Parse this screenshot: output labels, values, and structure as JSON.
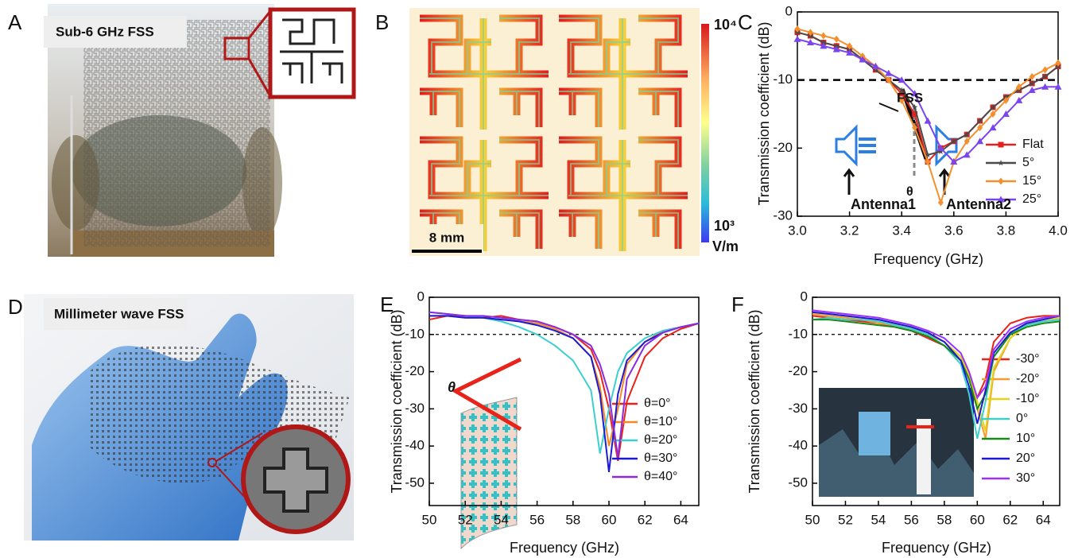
{
  "panels": {
    "a": {
      "letter": "A",
      "label": "Sub-6 GHz FSS"
    },
    "b": {
      "letter": "B",
      "scale_bar": "8 mm",
      "colorbar_max": "10⁴",
      "colorbar_min": "10³",
      "colorbar_unit": "V/m"
    },
    "d": {
      "letter": "D",
      "label": "Millimeter wave FSS"
    }
  },
  "chart_data": [
    {
      "type": "line",
      "label": "C",
      "xlabel": "Frequency (GHz)",
      "ylabel": "Transmission coefficient (dB)",
      "xlim": [
        3.0,
        4.0
      ],
      "ylim": [
        -30,
        0
      ],
      "xticks": [
        {
          "value": 3,
          "label": "3.0"
        },
        {
          "value": 3.2,
          "label": "3.2"
        },
        {
          "value": 3.4,
          "label": "3.4"
        },
        {
          "value": 3.6,
          "label": "3.6"
        },
        {
          "value": 3.8,
          "label": "3.8"
        },
        {
          "value": 4,
          "label": "4.0"
        }
      ],
      "yticks": [
        0,
        -10,
        -20,
        -30
      ],
      "grid": false,
      "hline": -10,
      "legend": "right",
      "annotations": [
        "FSS",
        "θ",
        "Antenna1",
        "Antenna2"
      ],
      "x": [
        3.0,
        3.05,
        3.1,
        3.15,
        3.2,
        3.25,
        3.3,
        3.35,
        3.4,
        3.45,
        3.5,
        3.55,
        3.6,
        3.65,
        3.7,
        3.75,
        3.8,
        3.85,
        3.9,
        3.95,
        4.0
      ],
      "series": [
        {
          "name": "Flat",
          "color": "#e4211c",
          "marker": "square",
          "values": [
            -3,
            -3.5,
            -4.5,
            -5,
            -5.5,
            -7,
            -8.5,
            -10,
            -12,
            -15,
            -22,
            -20,
            -19,
            -18,
            -16,
            -14,
            -12.5,
            -11.5,
            -10.5,
            -9.5,
            -8
          ]
        },
        {
          "name": "5°",
          "color": "#4a4a4a",
          "marker": "star",
          "values": [
            -3,
            -3.5,
            -4.5,
            -5,
            -5.5,
            -7,
            -8.5,
            -10,
            -11.5,
            -14,
            -21,
            -20.5,
            -19,
            -18,
            -16,
            -14,
            -12.5,
            -11.5,
            -10.5,
            -9.5,
            -8
          ]
        },
        {
          "name": "15°",
          "color": "#f2902e",
          "marker": "diamond",
          "values": [
            -2.5,
            -3,
            -3.5,
            -4,
            -5,
            -6.5,
            -8,
            -10,
            -13,
            -17,
            -22,
            -28,
            -22,
            -19,
            -17,
            -15,
            -13,
            -11,
            -9.5,
            -8.5,
            -7.5
          ]
        },
        {
          "name": "25°",
          "color": "#7a45ef",
          "marker": "triangle",
          "values": [
            -4,
            -4.5,
            -5,
            -5.5,
            -6,
            -7,
            -8,
            -9,
            -10,
            -12,
            -16,
            -20,
            -22,
            -21,
            -19,
            -17,
            -15,
            -13,
            -11.5,
            -11,
            -11
          ]
        }
      ]
    },
    {
      "type": "line",
      "label": "E",
      "xlabel": "Frequency (GHz)",
      "ylabel": "Transmission coefficient (dB)",
      "xlim": [
        50,
        65
      ],
      "ylim": [
        -56,
        0
      ],
      "xticks": [
        50,
        52,
        54,
        56,
        58,
        60,
        62,
        64
      ],
      "yticks": [
        0,
        -10,
        -20,
        -30,
        -40,
        -50
      ],
      "grid": false,
      "hline": -10,
      "legend": "lower right",
      "annotations": [
        "θ"
      ],
      "x": [
        50,
        51,
        52,
        53,
        54,
        55,
        56,
        57,
        58,
        59,
        59.5,
        60,
        60.5,
        61,
        62,
        63,
        64,
        65
      ],
      "series": [
        {
          "name": "θ=0°",
          "color": "#e8231a",
          "values": [
            -6,
            -5,
            -5,
            -5.5,
            -5,
            -6,
            -6.5,
            -8,
            -10,
            -14,
            -20,
            -30,
            -44,
            -28,
            -16,
            -11,
            -8.5,
            -7
          ]
        },
        {
          "name": "θ=10°",
          "color": "#f5891f",
          "values": [
            -5,
            -5,
            -5.5,
            -5.5,
            -6,
            -6.5,
            -7,
            -8.5,
            -11,
            -16,
            -24,
            -40,
            -30,
            -18,
            -12,
            -9,
            -8,
            -7
          ]
        },
        {
          "name": "θ=20°",
          "color": "#3ccfd0",
          "values": [
            -4,
            -4.5,
            -5,
            -5.5,
            -6.5,
            -8,
            -10,
            -13,
            -17,
            -25,
            -42,
            -30,
            -20,
            -15,
            -11,
            -9,
            -8,
            -7
          ]
        },
        {
          "name": "θ=30°",
          "color": "#1a1ad6",
          "values": [
            -5,
            -5,
            -5.5,
            -5.5,
            -6,
            -6.5,
            -7.5,
            -9,
            -11,
            -16,
            -26,
            -47,
            -26,
            -17,
            -12,
            -9.5,
            -8,
            -7
          ]
        },
        {
          "name": "θ=40°",
          "color": "#8a2be2",
          "values": [
            -4,
            -4.5,
            -5,
            -5,
            -5.5,
            -6,
            -6.5,
            -8,
            -10,
            -13,
            -18,
            -26,
            -43,
            -22,
            -13,
            -9.5,
            -8,
            -7
          ]
        }
      ]
    },
    {
      "type": "line",
      "label": "F",
      "xlabel": "Frequency (GHz)",
      "ylabel": "Transmission coefficient (dB)",
      "xlim": [
        50,
        65
      ],
      "ylim": [
        -56,
        0
      ],
      "xticks": [
        50,
        52,
        54,
        56,
        58,
        60,
        62,
        64
      ],
      "yticks": [
        0,
        -10,
        -20,
        -30,
        -40,
        -50
      ],
      "grid": false,
      "hline": -10,
      "legend": "right",
      "x": [
        50,
        51,
        52,
        53,
        54,
        55,
        56,
        57,
        58,
        59,
        59.5,
        60,
        60.5,
        61,
        62,
        63,
        64,
        65
      ],
      "series": [
        {
          "name": "-30°",
          "color": "#e8231a",
          "values": [
            -5,
            -5.5,
            -6,
            -6.5,
            -7,
            -8,
            -9,
            -11,
            -13,
            -17,
            -21,
            -27,
            -22,
            -12,
            -7,
            -5.5,
            -5,
            -5
          ]
        },
        {
          "name": "-20°",
          "color": "#f59b2a",
          "values": [
            -4.5,
            -5,
            -5.5,
            -6,
            -7,
            -7.5,
            -8.5,
            -10,
            -12,
            -16,
            -20,
            -30,
            -38,
            -20,
            -11,
            -7,
            -6,
            -5.5
          ]
        },
        {
          "name": "-10°",
          "color": "#e6d21b",
          "values": [
            -4,
            -4.5,
            -5,
            -5.5,
            -6,
            -7,
            -8,
            -9.5,
            -12,
            -16,
            -21,
            -28,
            -36,
            -19,
            -11,
            -7.5,
            -6,
            -5.5
          ]
        },
        {
          "name": "0°",
          "color": "#3cd0c8",
          "values": [
            -6,
            -5.5,
            -6,
            -6,
            -6.5,
            -7.5,
            -8.5,
            -10,
            -13,
            -18,
            -26,
            -38,
            -28,
            -16,
            -10,
            -7.5,
            -6.5,
            -6
          ]
        },
        {
          "name": "10°",
          "color": "#1a8a1a",
          "values": [
            -6,
            -6,
            -6.5,
            -7,
            -7.5,
            -8,
            -9,
            -10.5,
            -13,
            -17,
            -22,
            -30,
            -26,
            -16,
            -10,
            -8,
            -7,
            -6.5
          ]
        },
        {
          "name": "20°",
          "color": "#1a1ad6",
          "values": [
            -4,
            -4.5,
            -5,
            -5.5,
            -6,
            -7,
            -8,
            -9.5,
            -12,
            -17,
            -24,
            -34,
            -25,
            -15,
            -9.5,
            -7,
            -6,
            -5
          ]
        },
        {
          "name": "30°",
          "color": "#9b30ff",
          "values": [
            -3.5,
            -4,
            -4.5,
            -5,
            -5.5,
            -6.5,
            -7.5,
            -9,
            -11,
            -15,
            -20,
            -27,
            -24,
            -14,
            -8.5,
            -6.5,
            -5.5,
            -5
          ]
        }
      ]
    }
  ]
}
